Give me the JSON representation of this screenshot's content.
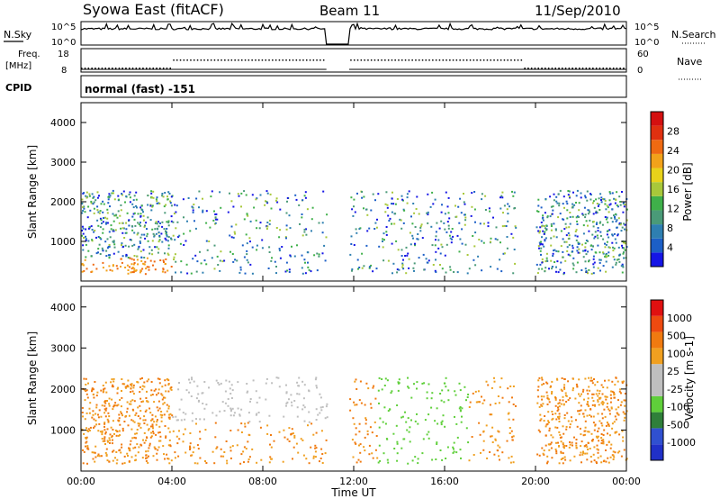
{
  "header": {
    "title": "Syowa East (fitACF)",
    "beam": "Beam 11",
    "date": "11/Sep/2010"
  },
  "top_panels": {
    "nsky_label": "N.Sky",
    "nsky_ticks": [
      "10^5",
      "10^0"
    ],
    "nsearch_label": "N.Search",
    "nsearch_ticks": [
      "10^5",
      "10^0"
    ],
    "freq_label_line1": "Freq.",
    "freq_label_line2": "[MHz]",
    "freq_ticks": [
      "18",
      "8"
    ],
    "nave_label": "Nave",
    "nave_ticks": [
      "60",
      "0"
    ],
    "cpid_label": "CPID",
    "cpid_text": "normal (fast) -151"
  },
  "colors": {
    "power_scale": [
      "#1515e6",
      "#1c5fc7",
      "#2e7fb1",
      "#4a9a78",
      "#3fb04a",
      "#a8c83a",
      "#e8d21a",
      "#f2a21a",
      "#ef6a12",
      "#e03010",
      "#d41010"
    ],
    "velocity_scale": [
      "#2030c8",
      "#3050d0",
      "#2f7f3a",
      "#5fcf3a",
      "#bfbfbf",
      "#bfbfbf",
      "#f0a020",
      "#f07a10",
      "#ee4a10",
      "#e01010"
    ]
  },
  "chart_data": [
    {
      "type": "heatmap",
      "name": "power",
      "ylabel": "Slant Range [km]",
      "xlabel": "",
      "x_range_hours": [
        0,
        24
      ],
      "ylim": [
        0,
        4500
      ],
      "yticks": [
        "4000",
        "3000",
        "2000",
        "1000"
      ],
      "colorbar_label": "Power [dB]",
      "colorbar_ticks": [
        "28",
        "24",
        "20",
        "16",
        "12",
        "8",
        "4"
      ],
      "colorbar_range": [
        0,
        30
      ],
      "data_extent_km": [
        200,
        2300
      ],
      "gaps_hours": [
        [
          10.8,
          11.8
        ],
        [
          19.1,
          20.0
        ]
      ]
    },
    {
      "type": "heatmap",
      "name": "velocity",
      "ylabel": "Slant Range [km]",
      "xlabel": "Time UT",
      "x_range_hours": [
        0,
        24
      ],
      "xticks": [
        "00:00",
        "04:00",
        "08:00",
        "12:00",
        "16:00",
        "20:00",
        "00:00"
      ],
      "ylim": [
        0,
        4500
      ],
      "yticks": [
        "4000",
        "3000",
        "2000",
        "1000"
      ],
      "colorbar_label": "Velocity [m s-1]",
      "colorbar_ticks": [
        "1000",
        "500",
        "100",
        "25",
        "-25",
        "-100",
        "-500",
        "-1000"
      ],
      "data_extent_km": [
        200,
        2300
      ],
      "gaps_hours": [
        [
          10.8,
          11.8
        ],
        [
          19.1,
          20.0
        ]
      ]
    }
  ]
}
